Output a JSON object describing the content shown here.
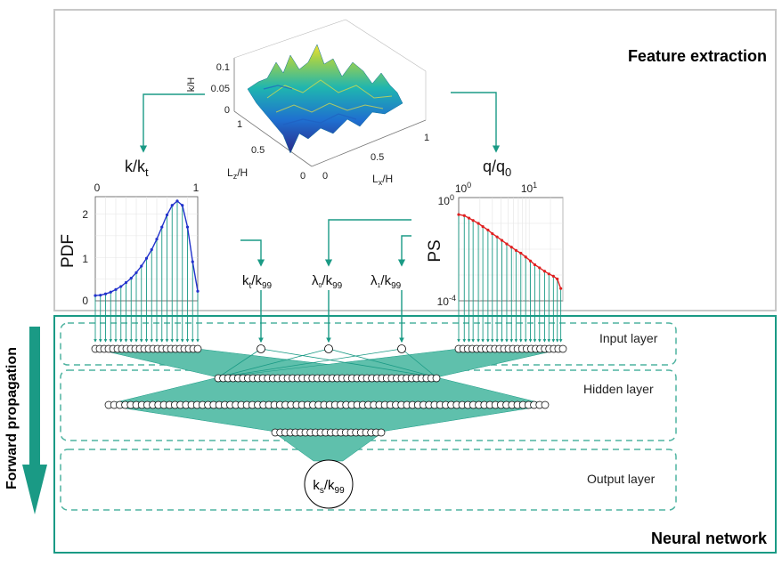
{
  "sections": {
    "feature_extraction": "Feature extraction",
    "neural_network": "Neural network",
    "forward_propagation": "Forward propagation"
  },
  "layers": {
    "input": "Input layer",
    "hidden": "Hidden layer",
    "output": "Output layer"
  },
  "surface": {
    "z_axis_label": "k/H",
    "z_ticks": [
      "0.1",
      "0.05",
      "0"
    ],
    "lz_label": "L",
    "lz_sub": "z",
    "lz_suffix": "/H",
    "lz_ticks": [
      "0.5",
      "0"
    ],
    "lx_label": "L",
    "lx_sub": "x",
    "lx_suffix": "/H",
    "lx_ticks": [
      "1",
      "0.5",
      "0"
    ],
    "left_tick": "1"
  },
  "pdf_plot": {
    "title_main": "k/k",
    "title_sub": "t",
    "ylabel": "PDF",
    "x_ticks": [
      "0",
      "1"
    ],
    "y_ticks": [
      "2",
      "1",
      "0"
    ]
  },
  "ps_plot": {
    "title_main": "q/q",
    "title_sub": "0",
    "ylabel": "PS",
    "x_tick_1_base": "10",
    "x_tick_1_exp": "0",
    "x_tick_2_base": "10",
    "x_tick_2_exp": "1",
    "y_tick_1_base": "10",
    "y_tick_1_exp": "0",
    "y_tick_2_base": "10",
    "y_tick_2_exp": "-4"
  },
  "features": {
    "kt_main": "k",
    "kt_sub": "t",
    "kt_div": "/k",
    "kt_div_sub": "99",
    "l0_main": "λ",
    "l0_sub": "0",
    "l0_div": "/k",
    "l0_div_sub": "99",
    "l1_main": "λ",
    "l1_sub": "1",
    "l1_div": "/k",
    "l1_div_sub": "99"
  },
  "output": {
    "main": "k",
    "sub": "s",
    "div": "/k",
    "div_sub": "99"
  },
  "colors": {
    "teal": "#1a9a85",
    "teal_fill": "#5fc0ac",
    "pdf_curve": "#2233cc",
    "ps_curve": "#e02020"
  },
  "chart_data": [
    {
      "type": "line",
      "title": "k/kt",
      "ylabel": "PDF",
      "xlim": [
        0,
        1
      ],
      "ylim": [
        0,
        2.4
      ],
      "x": [
        0.0,
        0.05,
        0.1,
        0.15,
        0.2,
        0.25,
        0.3,
        0.35,
        0.4,
        0.45,
        0.5,
        0.55,
        0.6,
        0.65,
        0.7,
        0.75,
        0.8,
        0.85,
        0.9,
        0.95,
        1.0
      ],
      "values": [
        0.12,
        0.13,
        0.16,
        0.2,
        0.26,
        0.33,
        0.42,
        0.52,
        0.65,
        0.8,
        0.98,
        1.18,
        1.42,
        1.7,
        1.98,
        2.2,
        2.3,
        2.2,
        1.7,
        0.9,
        0.22
      ]
    },
    {
      "type": "line",
      "title": "q/q0",
      "ylabel": "PS",
      "xscale": "log",
      "yscale": "log",
      "xlim": [
        1,
        30
      ],
      "ylim": [
        0.0001,
        1
      ],
      "x": [
        1,
        1.2,
        1.4,
        1.6,
        1.9,
        2.2,
        2.6,
        3,
        3.5,
        4.1,
        4.8,
        5.6,
        6.5,
        7.6,
        8.9,
        10.4,
        12,
        14,
        16.5,
        19,
        22,
        25,
        28
      ],
      "values": [
        0.22,
        0.2,
        0.16,
        0.13,
        0.1,
        0.075,
        0.055,
        0.04,
        0.03,
        0.022,
        0.016,
        0.012,
        0.009,
        0.007,
        0.005,
        0.0035,
        0.0025,
        0.0019,
        0.0014,
        0.0011,
        0.0009,
        0.0007,
        0.0003
      ]
    }
  ]
}
